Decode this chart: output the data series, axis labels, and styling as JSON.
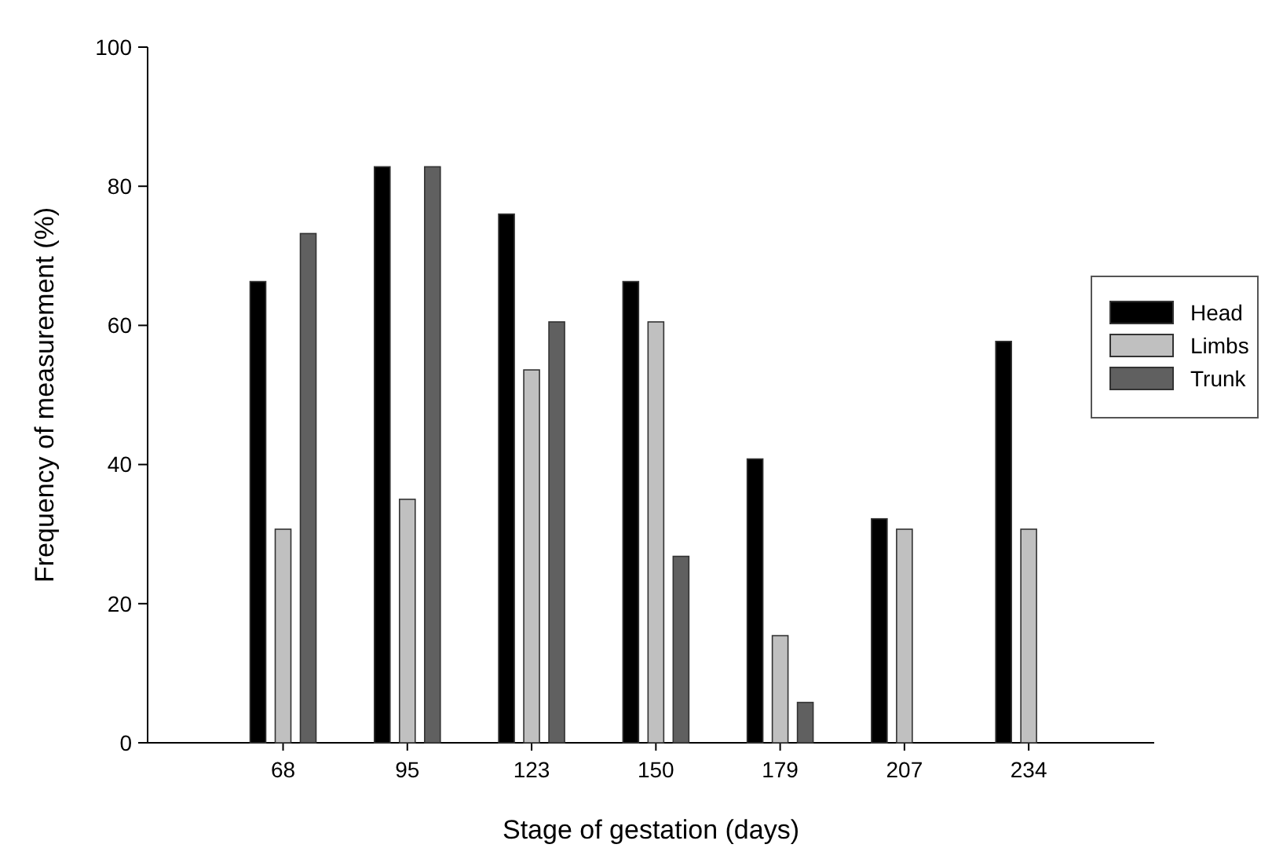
{
  "chart_data": {
    "type": "bar",
    "xlabel": "Stage of gestation (days)",
    "ylabel": "Frequency of measurement (%)",
    "categories": [
      "68",
      "95",
      "123",
      "150",
      "179",
      "207",
      "234"
    ],
    "series": [
      {
        "name": "Head",
        "color": "#000000",
        "values": [
          66.3,
          82.8,
          76.0,
          66.3,
          40.8,
          32.2,
          57.7
        ]
      },
      {
        "name": "Limbs",
        "color": "#c0c0c0",
        "values": [
          30.7,
          35.0,
          53.6,
          60.5,
          15.4,
          30.7,
          30.7
        ]
      },
      {
        "name": "Trunk",
        "color": "#606060",
        "values": [
          73.2,
          82.8,
          60.5,
          26.8,
          5.8,
          null,
          null
        ]
      }
    ],
    "ylim": [
      0,
      100
    ],
    "yticks": [
      0,
      20,
      40,
      60,
      80,
      100
    ],
    "grid": false,
    "legend": "right"
  }
}
